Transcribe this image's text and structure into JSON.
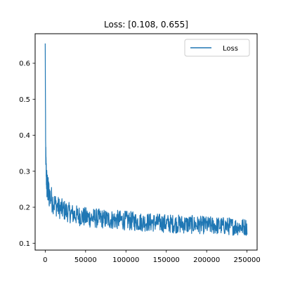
{
  "chart_data": {
    "type": "line",
    "title": "Loss: [0.108, 0.655]",
    "xlabel": "",
    "ylabel": "",
    "xlim": [
      -12500,
      262500
    ],
    "ylim": [
      0.081,
      0.682
    ],
    "x_ticks": [
      0,
      50000,
      100000,
      150000,
      200000,
      250000
    ],
    "y_ticks": [
      0.1,
      0.2,
      0.3,
      0.4,
      0.5,
      0.6
    ],
    "grid": false,
    "legend_position": "top-right",
    "series": [
      {
        "name": "Loss",
        "color": "#1f77b4",
        "x": [
          0,
          500,
          1000,
          1500,
          2000,
          3000,
          4000,
          5000,
          6000,
          8000,
          10000,
          12500,
          15000,
          17500,
          20000,
          25000,
          30000,
          35000,
          40000,
          45000,
          50000,
          60000,
          70000,
          80000,
          90000,
          100000,
          110000,
          120000,
          130000,
          140000,
          150000,
          160000,
          170000,
          180000,
          190000,
          200000,
          210000,
          220000,
          230000,
          240000,
          250000
        ],
        "y": [
          0.655,
          0.37,
          0.31,
          0.285,
          0.265,
          0.25,
          0.242,
          0.236,
          0.23,
          0.222,
          0.215,
          0.208,
          0.202,
          0.198,
          0.195,
          0.19,
          0.185,
          0.18,
          0.177,
          0.175,
          0.172,
          0.17,
          0.168,
          0.166,
          0.165,
          0.163,
          0.161,
          0.159,
          0.158,
          0.157,
          0.155,
          0.154,
          0.153,
          0.152,
          0.151,
          0.15,
          0.149,
          0.148,
          0.147,
          0.146,
          0.145
        ],
        "noise_band": [
          0.0,
          0.04,
          0.045,
          0.045,
          0.045,
          0.04,
          0.04,
          0.04,
          0.038,
          0.036,
          0.034,
          0.032,
          0.03,
          0.03,
          0.03,
          0.029,
          0.028,
          0.028,
          0.028,
          0.028,
          0.028,
          0.028,
          0.027,
          0.027,
          0.027,
          0.027,
          0.027,
          0.026,
          0.026,
          0.026,
          0.026,
          0.026,
          0.026,
          0.026,
          0.025,
          0.025,
          0.025,
          0.025,
          0.025,
          0.024,
          0.024
        ],
        "min": 0.108,
        "max": 0.655
      }
    ]
  }
}
